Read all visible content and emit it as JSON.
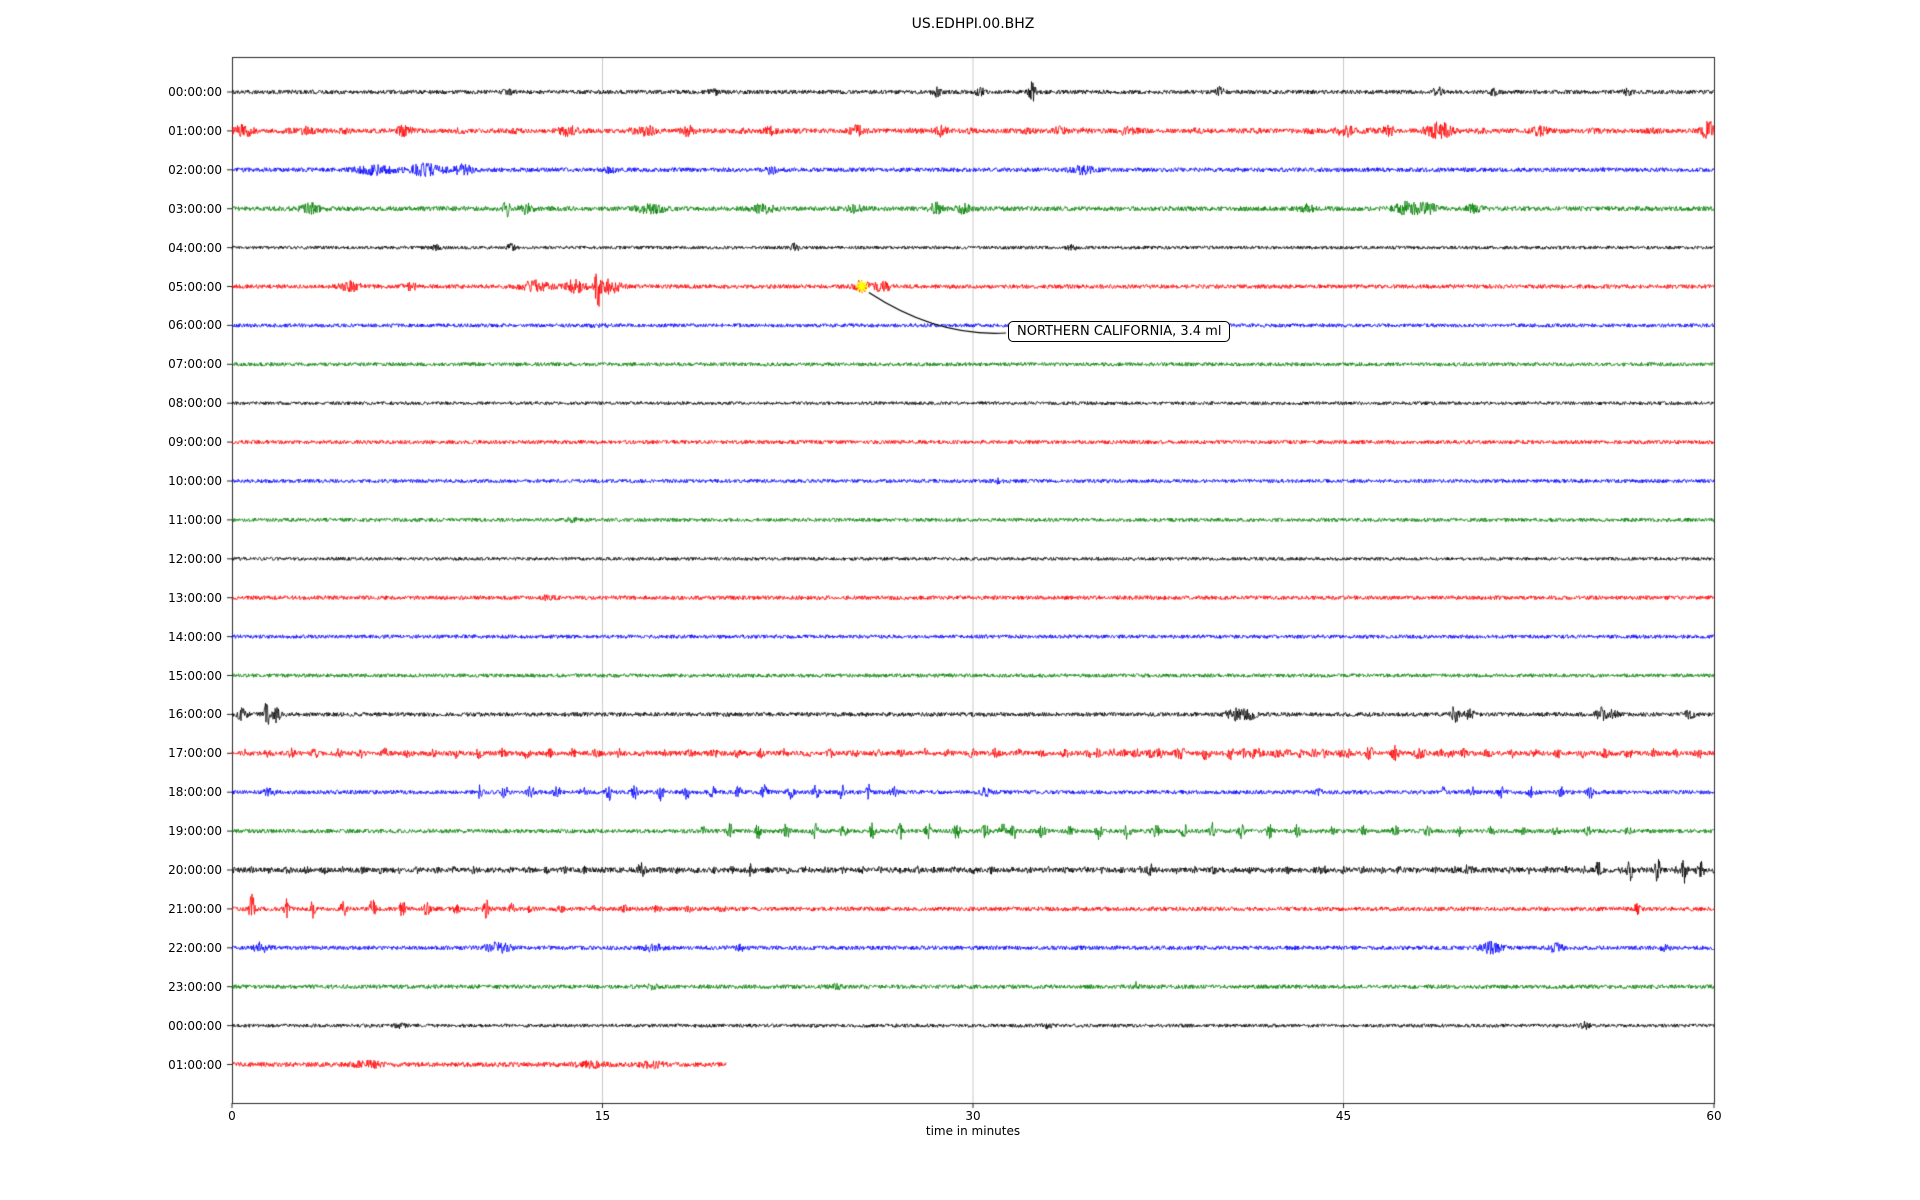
{
  "chart_data": {
    "type": "line",
    "title": "US.EDHPI.00.BHZ",
    "xlabel": "time in minutes",
    "xlim": [
      0,
      60
    ],
    "xticks": [
      0,
      15,
      30,
      45,
      60
    ],
    "grid": {
      "vertical_lines_at": [
        15,
        30,
        45
      ],
      "color": "#c8c8c8"
    },
    "trace_colors_cycle": [
      "#000000",
      "#ff0000",
      "#0000ff",
      "#008000"
    ],
    "annotation": {
      "text": "NORTHERN CALIFORNIA, 3.4 ml",
      "row_index": 5,
      "row_label": "05:00:00",
      "t_minutes": 25.5,
      "marker_color": "#ffff00"
    },
    "rows": [
      {
        "label": "00:00:00",
        "color": "#000000",
        "base": 2.1,
        "duration": 60,
        "events": [
          {
            "t": 11.2,
            "a": 2,
            "s": 0.15
          },
          {
            "t": 19.5,
            "a": 2,
            "s": 0.15
          },
          {
            "t": 28.5,
            "a": 4,
            "s": 0.12
          },
          {
            "t": 30.3,
            "a": 3.5,
            "s": 0.12
          },
          {
            "t": 32.4,
            "a": 9,
            "s": 0.1
          },
          {
            "t": 40.0,
            "a": 4,
            "s": 0.12
          },
          {
            "t": 48.8,
            "a": 5,
            "s": 0.12
          },
          {
            "t": 51.1,
            "a": 3,
            "s": 0.12
          },
          {
            "t": 56.5,
            "a": 2.5,
            "s": 0.12
          }
        ]
      },
      {
        "label": "01:00:00",
        "color": "#ff0000",
        "base": 2.4,
        "duration": 60,
        "events": [
          {
            "t0": 0,
            "t1": 60,
            "p": 2.3,
            "a": 1.2,
            "s": 0.18
          },
          {
            "t": 0.5,
            "a": 5,
            "s": 0.25
          },
          {
            "t": 3,
            "a": 3,
            "s": 0.2
          },
          {
            "t": 7,
            "a": 4,
            "s": 0.2
          },
          {
            "t": 13.5,
            "a": 4,
            "s": 0.25
          },
          {
            "t": 16.8,
            "a": 4,
            "s": 0.25
          },
          {
            "t": 18.5,
            "a": 3,
            "s": 0.2
          },
          {
            "t": 21.8,
            "a": 3,
            "s": 0.2
          },
          {
            "t": 25.3,
            "a": 3,
            "s": 0.2
          },
          {
            "t": 28.7,
            "a": 4,
            "s": 0.2
          },
          {
            "t": 33.5,
            "a": 3,
            "s": 0.2
          },
          {
            "t": 36.2,
            "a": 3,
            "s": 0.2
          },
          {
            "t": 45.1,
            "a": 4.5,
            "s": 0.25
          },
          {
            "t": 46.8,
            "a": 4,
            "s": 0.2
          },
          {
            "t": 48.9,
            "a": 8,
            "s": 0.3
          },
          {
            "t": 53,
            "a": 3,
            "s": 0.2
          },
          {
            "t": 59.8,
            "a": 7,
            "s": 0.2
          }
        ]
      },
      {
        "label": "02:00:00",
        "color": "#0000ff",
        "base": 2.2,
        "duration": 60,
        "events": [
          {
            "t": 5.8,
            "a": 4,
            "s": 0.5
          },
          {
            "t": 7.8,
            "a": 5,
            "s": 0.45
          },
          {
            "t": 9.3,
            "a": 4,
            "s": 0.35
          },
          {
            "t": 15.3,
            "a": 2,
            "s": 0.2
          },
          {
            "t": 21.8,
            "a": 3,
            "s": 0.2
          },
          {
            "t": 34.4,
            "a": 4,
            "s": 0.3
          }
        ]
      },
      {
        "label": "03:00:00",
        "color": "#008000",
        "base": 2.4,
        "duration": 60,
        "events": [
          {
            "t": 3.2,
            "a": 4,
            "s": 0.3
          },
          {
            "t": 11.1,
            "a": 9,
            "s": 0.09
          },
          {
            "t": 11.9,
            "a": 4,
            "s": 0.2
          },
          {
            "t": 17,
            "a": 4,
            "s": 0.4
          },
          {
            "t": 21.5,
            "a": 4,
            "s": 0.3
          },
          {
            "t": 25.2,
            "a": 3,
            "s": 0.2
          },
          {
            "t": 28.5,
            "a": 5,
            "s": 0.18
          },
          {
            "t": 29.6,
            "a": 4,
            "s": 0.18
          },
          {
            "t": 43.5,
            "a": 3,
            "s": 0.2
          },
          {
            "t": 47.6,
            "a": 6,
            "s": 0.35
          },
          {
            "t": 48.4,
            "a": 5,
            "s": 0.25
          },
          {
            "t": 50.3,
            "a": 4,
            "s": 0.2
          }
        ]
      },
      {
        "label": "04:00:00",
        "color": "#000000",
        "base": 1.7,
        "duration": 60,
        "events": [
          {
            "t": 8.2,
            "a": 3,
            "s": 0.15
          },
          {
            "t": 11.3,
            "a": 3,
            "s": 0.12
          },
          {
            "t": 22.8,
            "a": 4,
            "s": 0.12
          },
          {
            "t": 34,
            "a": 2,
            "s": 0.15
          }
        ]
      },
      {
        "label": "05:00:00",
        "color": "#ff0000",
        "base": 2.1,
        "duration": 60,
        "events": [
          {
            "t": 4.8,
            "a": 4,
            "s": 0.3
          },
          {
            "t": 7.2,
            "a": 3,
            "s": 0.2
          },
          {
            "t": 12.3,
            "a": 5,
            "s": 0.4
          },
          {
            "t": 13.9,
            "a": 6,
            "s": 0.3
          },
          {
            "t": 14.8,
            "a": 23,
            "s": 0.07
          },
          {
            "t": 15.3,
            "a": 6,
            "s": 0.3
          },
          {
            "t": 25.5,
            "a": 5,
            "s": 0.22
          },
          {
            "t": 26.3,
            "a": 4,
            "s": 0.28
          }
        ]
      },
      {
        "label": "06:00:00",
        "color": "#0000ff",
        "base": 1.9,
        "duration": 60,
        "events": [
          {
            "t": 14.9,
            "a": 1.5,
            "s": 0.2
          }
        ]
      },
      {
        "label": "07:00:00",
        "color": "#008000",
        "base": 1.9,
        "duration": 60,
        "events": []
      },
      {
        "label": "08:00:00",
        "color": "#000000",
        "base": 1.7,
        "duration": 60,
        "events": []
      },
      {
        "label": "09:00:00",
        "color": "#ff0000",
        "base": 2.0,
        "duration": 60,
        "events": []
      },
      {
        "label": "10:00:00",
        "color": "#0000ff",
        "base": 1.9,
        "duration": 60,
        "events": [
          {
            "t": 31,
            "a": 1.5,
            "s": 0.15
          }
        ]
      },
      {
        "label": "11:00:00",
        "color": "#008000",
        "base": 1.9,
        "duration": 60,
        "events": [
          {
            "t": 13.8,
            "a": 1.8,
            "s": 0.15
          }
        ]
      },
      {
        "label": "12:00:00",
        "color": "#000000",
        "base": 1.7,
        "duration": 60,
        "events": []
      },
      {
        "label": "13:00:00",
        "color": "#ff0000",
        "base": 2.1,
        "duration": 60,
        "events": [
          {
            "t": 12.8,
            "a": 1.5,
            "s": 0.2
          }
        ]
      },
      {
        "label": "14:00:00",
        "color": "#0000ff",
        "base": 1.9,
        "duration": 60,
        "events": []
      },
      {
        "label": "15:00:00",
        "color": "#008000",
        "base": 1.9,
        "duration": 60,
        "events": []
      },
      {
        "label": "16:00:00",
        "color": "#000000",
        "base": 2.1,
        "duration": 60,
        "events": [
          {
            "t": 0.4,
            "a": 5,
            "s": 0.15
          },
          {
            "t": 1.4,
            "a": 13,
            "s": 0.08
          },
          {
            "t": 1.8,
            "a": 8,
            "s": 0.1
          },
          {
            "t": 40.6,
            "a": 5,
            "s": 0.25
          },
          {
            "t": 41.2,
            "a": 4,
            "s": 0.2
          },
          {
            "t": 49.5,
            "a": 9,
            "s": 0.1
          },
          {
            "t": 50.1,
            "a": 4,
            "s": 0.15
          },
          {
            "t": 55.4,
            "a": 6,
            "s": 0.15
          },
          {
            "t": 55.9,
            "a": 4,
            "s": 0.15
          },
          {
            "t": 59,
            "a": 3,
            "s": 0.15
          }
        ]
      },
      {
        "label": "17:00:00",
        "color": "#ff0000",
        "base": 2.4,
        "duration": 60,
        "events": [
          {
            "t0": 0.5,
            "t1": 59.5,
            "p": 0.95,
            "a": 3.2,
            "s": 0.09
          },
          {
            "t0": 35,
            "t1": 50,
            "p": 1.1,
            "a": 2.8,
            "s": 0.1
          },
          {
            "t": 41,
            "a": 4,
            "s": 0.1
          }
        ]
      },
      {
        "label": "18:00:00",
        "color": "#0000ff",
        "base": 2.1,
        "duration": 60,
        "events": [
          {
            "t": 1.5,
            "a": 4,
            "s": 0.15
          },
          {
            "t0": 10,
            "t1": 27,
            "p": 1.05,
            "a": 7,
            "s": 0.08
          },
          {
            "t": 30.5,
            "a": 4,
            "s": 0.12
          },
          {
            "t": 44,
            "a": 2.5,
            "s": 0.1
          },
          {
            "t0": 49,
            "t1": 56,
            "p": 1.2,
            "a": 4.5,
            "s": 0.09
          }
        ]
      },
      {
        "label": "19:00:00",
        "color": "#008000",
        "base": 2.1,
        "duration": 60,
        "events": [
          {
            "t0": 19,
            "t1": 43.5,
            "p": 1.15,
            "a": 7,
            "s": 0.08
          },
          {
            "t0": 44.5,
            "t1": 55,
            "p": 1.3,
            "a": 4,
            "s": 0.09
          },
          {
            "t": 31.2,
            "a": 9,
            "s": 0.08
          },
          {
            "t": 56.5,
            "a": 3,
            "s": 0.1
          }
        ]
      },
      {
        "label": "20:00:00",
        "color": "#000000",
        "base": 2.5,
        "duration": 60,
        "events": [
          {
            "t0": 0,
            "t1": 60,
            "p": 0.75,
            "a": 1.8,
            "s": 0.07
          },
          {
            "t": 16.6,
            "a": 5,
            "s": 0.1
          },
          {
            "t": 21,
            "a": 3,
            "s": 0.1
          },
          {
            "t": 37.2,
            "a": 4,
            "s": 0.1
          },
          {
            "t": 44,
            "a": 3,
            "s": 0.1
          },
          {
            "t": 50,
            "a": 3,
            "s": 0.1
          },
          {
            "t": 55.3,
            "a": 8,
            "s": 0.07
          },
          {
            "t": 56.6,
            "a": 11,
            "s": 0.07
          },
          {
            "t": 57.7,
            "a": 12,
            "s": 0.07
          },
          {
            "t": 58.8,
            "a": 12,
            "s": 0.07
          },
          {
            "t": 59.5,
            "a": 7,
            "s": 0.07
          }
        ]
      },
      {
        "label": "21:00:00",
        "color": "#ff0000",
        "base": 2.2,
        "duration": 60,
        "events": [
          {
            "t": 0.8,
            "a": 14,
            "s": 0.08
          },
          {
            "t": 2.2,
            "a": 10,
            "s": 0.08
          },
          {
            "t": 3.3,
            "a": 9,
            "s": 0.08
          },
          {
            "t": 4.5,
            "a": 8,
            "s": 0.08
          },
          {
            "t": 5.7,
            "a": 9,
            "s": 0.08
          },
          {
            "t": 6.9,
            "a": 8,
            "s": 0.08
          },
          {
            "t": 7.9,
            "a": 7,
            "s": 0.08
          },
          {
            "t": 9.1,
            "a": 6,
            "s": 0.08
          },
          {
            "t": 10.3,
            "a": 8,
            "s": 0.08
          },
          {
            "t": 11.3,
            "a": 5,
            "s": 0.08
          },
          {
            "t0": 12,
            "t1": 20,
            "p": 1.3,
            "a": 2,
            "s": 0.12
          },
          {
            "t": 56.9,
            "a": 4,
            "s": 0.1
          }
        ]
      },
      {
        "label": "22:00:00",
        "color": "#0000ff",
        "base": 2.1,
        "duration": 60,
        "events": [
          {
            "t": 1.2,
            "a": 5,
            "s": 0.2
          },
          {
            "t": 10.6,
            "a": 4,
            "s": 0.25
          },
          {
            "t": 11.1,
            "a": 3,
            "s": 0.2
          },
          {
            "t": 17.1,
            "a": 4,
            "s": 0.25
          },
          {
            "t": 20.6,
            "a": 2,
            "s": 0.15
          },
          {
            "t": 51,
            "a": 5,
            "s": 0.3
          },
          {
            "t": 53.6,
            "a": 4,
            "s": 0.2
          },
          {
            "t": 58,
            "a": 2.5,
            "s": 0.15
          }
        ]
      },
      {
        "label": "23:00:00",
        "color": "#008000",
        "base": 2.1,
        "duration": 60,
        "events": [
          {
            "t": 17,
            "a": 1.5,
            "s": 0.2
          },
          {
            "t": 24.5,
            "a": 1.5,
            "s": 0.2
          },
          {
            "t": 36.6,
            "a": 4,
            "s": 0.08
          }
        ]
      },
      {
        "label": "00:00:00",
        "color": "#000000",
        "base": 1.8,
        "duration": 60,
        "events": [
          {
            "t": 6.8,
            "a": 2,
            "s": 0.15
          },
          {
            "t": 33,
            "a": 2,
            "s": 0.2
          },
          {
            "t": 54.8,
            "a": 3,
            "s": 0.12
          }
        ]
      },
      {
        "label": "01:00:00",
        "color": "#ff0000",
        "base": 2.4,
        "duration": 20,
        "events": [
          {
            "t": 5.5,
            "a": 2.5,
            "s": 0.4
          },
          {
            "t": 14.5,
            "a": 2.5,
            "s": 0.4
          },
          {
            "t": 17,
            "a": 2.5,
            "s": 0.3
          }
        ]
      }
    ]
  }
}
